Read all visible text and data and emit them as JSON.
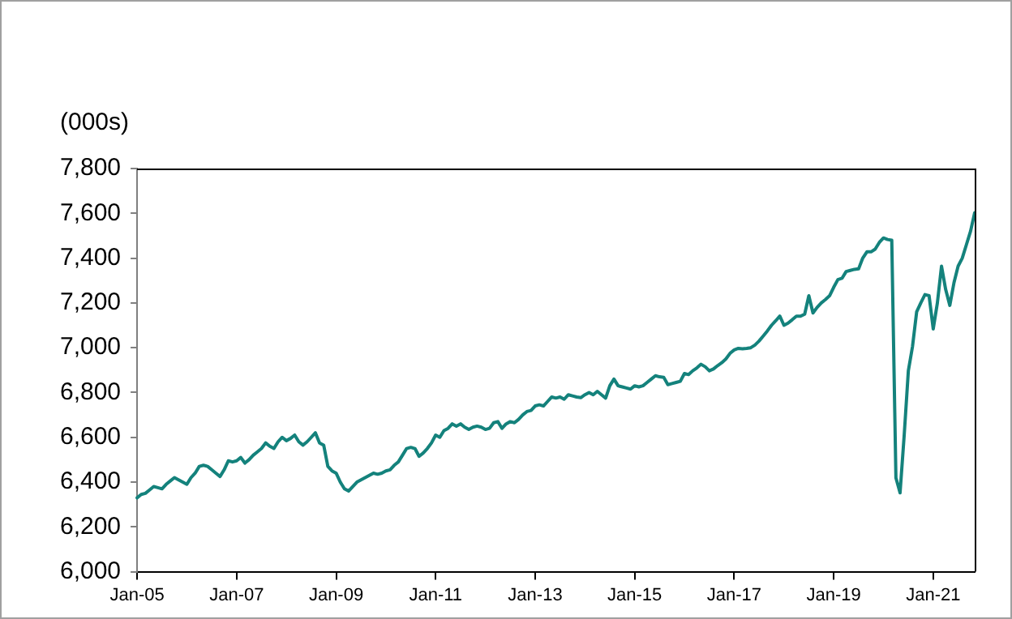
{
  "chart_data": {
    "type": "line",
    "ylabel": "(000s)",
    "categories": [
      "Jan-05",
      null,
      null,
      null,
      null,
      null,
      null,
      null,
      null,
      null,
      null,
      null,
      null,
      null,
      null,
      null,
      null,
      null,
      null,
      null,
      null,
      null,
      null,
      null,
      "Jan-07",
      null,
      null,
      null,
      null,
      null,
      null,
      null,
      null,
      null,
      null,
      null,
      null,
      null,
      null,
      null,
      null,
      null,
      null,
      null,
      null,
      null,
      null,
      null,
      "Jan-09",
      null,
      null,
      null,
      null,
      null,
      null,
      null,
      null,
      null,
      null,
      null,
      null,
      null,
      null,
      null,
      null,
      null,
      null,
      null,
      null,
      null,
      null,
      null,
      "Jan-11",
      null,
      null,
      null,
      null,
      null,
      null,
      null,
      null,
      null,
      null,
      null,
      null,
      null,
      null,
      null,
      null,
      null,
      null,
      null,
      null,
      null,
      null,
      null,
      "Jan-13",
      null,
      null,
      null,
      null,
      null,
      null,
      null,
      null,
      null,
      null,
      null,
      null,
      null,
      null,
      null,
      null,
      null,
      null,
      null,
      null,
      null,
      null,
      null,
      "Jan-15",
      null,
      null,
      null,
      null,
      null,
      null,
      null,
      null,
      null,
      null,
      null,
      null,
      null,
      null,
      null,
      null,
      null,
      null,
      null,
      null,
      null,
      null,
      null,
      "Jan-17",
      null,
      null,
      null,
      null,
      null,
      null,
      null,
      null,
      null,
      null,
      null,
      null,
      null,
      null,
      null,
      null,
      null,
      null,
      null,
      null,
      null,
      null,
      null,
      "Jan-19",
      null,
      null,
      null,
      null,
      null,
      null,
      null,
      null,
      null,
      null,
      null,
      null,
      null,
      null,
      null,
      null,
      null,
      null,
      null,
      null,
      null,
      null,
      null,
      "Jan-21",
      null,
      null,
      null,
      null,
      null,
      null,
      null,
      null,
      null,
      null
    ],
    "series": [
      {
        "color": "#14827c",
        "values": [
          6330,
          6345,
          6350,
          6365,
          6380,
          6375,
          6370,
          6390,
          6405,
          6420,
          6410,
          6400,
          6390,
          6420,
          6440,
          6470,
          6475,
          6470,
          6455,
          6440,
          6425,
          6455,
          6495,
          6490,
          6495,
          6510,
          6485,
          6500,
          6520,
          6535,
          6550,
          6575,
          6560,
          6550,
          6580,
          6600,
          6585,
          6595,
          6610,
          6580,
          6565,
          6580,
          6600,
          6620,
          6575,
          6565,
          6470,
          6450,
          6440,
          6400,
          6370,
          6360,
          6380,
          6400,
          6410,
          6420,
          6430,
          6440,
          6435,
          6440,
          6450,
          6455,
          6475,
          6490,
          6520,
          6550,
          6555,
          6550,
          6515,
          6530,
          6550,
          6575,
          6610,
          6600,
          6630,
          6640,
          6660,
          6650,
          6660,
          6645,
          6635,
          6645,
          6650,
          6645,
          6635,
          6640,
          6665,
          6670,
          6640,
          6660,
          6670,
          6665,
          6680,
          6700,
          6715,
          6720,
          6740,
          6745,
          6740,
          6760,
          6780,
          6775,
          6780,
          6770,
          6790,
          6785,
          6780,
          6777,
          6790,
          6800,
          6790,
          6805,
          6790,
          6775,
          6830,
          6860,
          6830,
          6825,
          6820,
          6815,
          6830,
          6825,
          6830,
          6845,
          6860,
          6875,
          6870,
          6868,
          6835,
          6840,
          6845,
          6850,
          6885,
          6880,
          6897,
          6910,
          6926,
          6915,
          6897,
          6905,
          6920,
          6933,
          6950,
          6975,
          6990,
          6997,
          6995,
          6997,
          7000,
          7012,
          7030,
          7052,
          7075,
          7100,
          7120,
          7141,
          7100,
          7110,
          7125,
          7141,
          7141,
          7150,
          7232,
          7155,
          7180,
          7200,
          7215,
          7232,
          7270,
          7304,
          7310,
          7340,
          7345,
          7350,
          7352,
          7400,
          7428,
          7428,
          7440,
          7470,
          7490,
          7483,
          7480,
          6419,
          6352,
          6610,
          6897,
          7005,
          7160,
          7200,
          7237,
          7232,
          7084,
          7200,
          7364,
          7260,
          7189,
          7290,
          7364,
          7400,
          7460,
          7520,
          7603
        ]
      }
    ],
    "ylim": [
      6000,
      7800
    ],
    "yticks": [
      {
        "value": 6000,
        "label": "6,000"
      },
      {
        "value": 6200,
        "label": "6,200"
      },
      {
        "value": 6400,
        "label": "6,400"
      },
      {
        "value": 6600,
        "label": "6,600"
      },
      {
        "value": 6800,
        "label": "6,800"
      },
      {
        "value": 7000,
        "label": "7,000"
      },
      {
        "value": 7200,
        "label": "7,200"
      },
      {
        "value": 7400,
        "label": "7,400"
      },
      {
        "value": 7600,
        "label": "7,600"
      },
      {
        "value": 7800,
        "label": "7,800"
      }
    ],
    "grid": false,
    "legend": false,
    "marker": "none",
    "line_style": "solid"
  }
}
